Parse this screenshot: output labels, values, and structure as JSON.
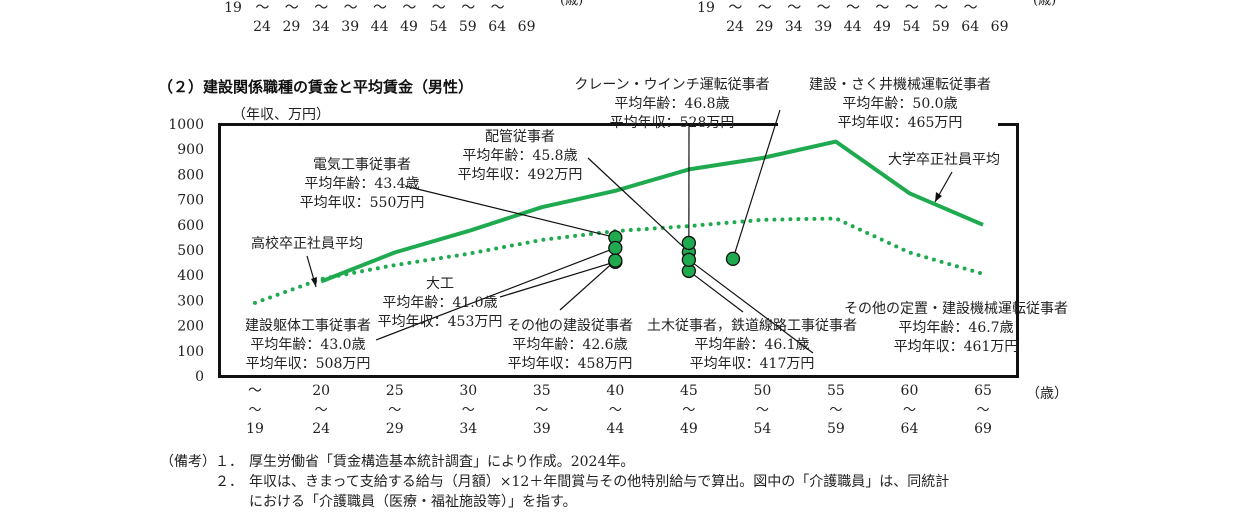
{
  "prev_panel_axis": {
    "row1": [
      "19",
      "〜",
      "〜",
      "〜",
      "〜",
      "〜",
      "〜",
      "〜",
      "〜",
      "〜"
    ],
    "row2": [
      "24",
      "29",
      "34",
      "39",
      "44",
      "49",
      "54",
      "59",
      "64",
      "69"
    ],
    "unit_fragment": "(歳)"
  },
  "chart_data": {
    "type": "line",
    "title": "（２）建設関係職種の賃金と平均賃金（男性）",
    "ylabel": "（年収、万円）",
    "xlabel": "（歳）",
    "ylim": [
      0,
      1000
    ],
    "yticks": [
      "0",
      "100",
      "200",
      "300",
      "400",
      "500",
      "600",
      "700",
      "800",
      "900",
      "1000"
    ],
    "xticks": [
      {
        "x": 17.5,
        "top": "〜",
        "bottom": "19"
      },
      {
        "x": 22,
        "top": "20",
        "bottom": "24"
      },
      {
        "x": 27,
        "top": "25",
        "bottom": "29"
      },
      {
        "x": 32,
        "top": "30",
        "bottom": "34"
      },
      {
        "x": 37,
        "top": "35",
        "bottom": "39"
      },
      {
        "x": 42,
        "top": "40",
        "bottom": "44"
      },
      {
        "x": 47,
        "top": "45",
        "bottom": "49"
      },
      {
        "x": 52,
        "top": "50",
        "bottom": "54"
      },
      {
        "x": 57,
        "top": "55",
        "bottom": "59"
      },
      {
        "x": 62,
        "top": "60",
        "bottom": "64"
      },
      {
        "x": 67,
        "top": "65",
        "bottom": "69"
      }
    ],
    "series": [
      {
        "name": "大学卒正社員平均",
        "style": "solid",
        "color": "#1faa4f",
        "points": [
          [
            22,
            375
          ],
          [
            27,
            490
          ],
          [
            32,
            575
          ],
          [
            37,
            670
          ],
          [
            42,
            735
          ],
          [
            47,
            820
          ],
          [
            52,
            865
          ],
          [
            57,
            930
          ],
          [
            62,
            725
          ],
          [
            67,
            600
          ]
        ]
      },
      {
        "name": "高校卒正社員平均",
        "style": "dotted",
        "color": "#1faa4f",
        "points": [
          [
            17.5,
            290
          ],
          [
            22,
            385
          ],
          [
            27,
            440
          ],
          [
            32,
            485
          ],
          [
            37,
            540
          ],
          [
            42,
            575
          ],
          [
            47,
            595
          ],
          [
            52,
            620
          ],
          [
            57,
            625
          ],
          [
            62,
            490
          ],
          [
            67,
            405
          ]
        ]
      }
    ],
    "occupations": [
      {
        "name": "電気工事従事者",
        "avg_age": 43.4,
        "annual_income": 550,
        "label_lines": [
          "電気工事従事者",
          "平均年齢：43.4歳",
          "平均年収：550万円"
        ]
      },
      {
        "name": "配管従事者",
        "avg_age": 45.8,
        "annual_income": 492,
        "label_lines": [
          "配管従事者",
          "平均年齢：45.8歳",
          "平均年収：492万円"
        ]
      },
      {
        "name": "クレーン・ウインチ運転従事者",
        "avg_age": 46.8,
        "annual_income": 528,
        "label_lines": [
          "クレーン・ウインチ運転従事者",
          "平均年齢：46.8歳",
          "平均年収：528万円"
        ]
      },
      {
        "name": "建設・さく井機械運転従事者",
        "avg_age": 50.0,
        "annual_income": 465,
        "label_lines": [
          "建設・さく井機械運転従事者",
          "平均年齢：50.0歳",
          "平均年収：465万円"
        ]
      },
      {
        "name": "大工",
        "avg_age": 41.0,
        "annual_income": 453,
        "label_lines": [
          "大工",
          "平均年齢：41.0歳",
          "平均年収：453万円"
        ]
      },
      {
        "name": "建設躯体工事従事者",
        "avg_age": 43.0,
        "annual_income": 508,
        "label_lines": [
          "建設躯体工事従事者",
          "平均年齢：43.0歳",
          "平均年収：508万円"
        ]
      },
      {
        "name": "その他の建設従事者",
        "avg_age": 42.6,
        "annual_income": 458,
        "label_lines": [
          "その他の建設従事者",
          "平均年齢：42.6歳",
          "平均年収：458万円"
        ]
      },
      {
        "name": "土木従事者，鉄道線路工事従事者",
        "avg_age": 46.1,
        "annual_income": 417,
        "label_lines": [
          "土木従事者，鉄道線路工事従事者",
          "平均年齢：46.1歳",
          "平均年収：417万円"
        ]
      },
      {
        "name": "その他の定置・建設機械運転従事者",
        "avg_age": 46.7,
        "annual_income": 461,
        "label_lines": [
          "その他の定置・建設機械運転従事者",
          "平均年齢：46.7歳",
          "平均年収：461万円"
        ]
      }
    ],
    "series_labels": [
      "大学卒正社員平均",
      "高校卒正社員平均"
    ],
    "grid": false,
    "line_color": "#1faa4f",
    "marker_fill": "#1faa4f"
  },
  "notes": {
    "label": "（備考）",
    "items": [
      {
        "num": "１．",
        "lines": [
          "厚生労働省「賃金構造基本統計調査」により作成。2024年。"
        ]
      },
      {
        "num": "２．",
        "lines": [
          "年収は、きまって支給する給与（月額）×12＋年間賞与その他特別給与で算出。図中の「介護職員」は、同統計",
          "における「介護職員（医療・福祉施設等）」を指す。"
        ]
      }
    ]
  }
}
